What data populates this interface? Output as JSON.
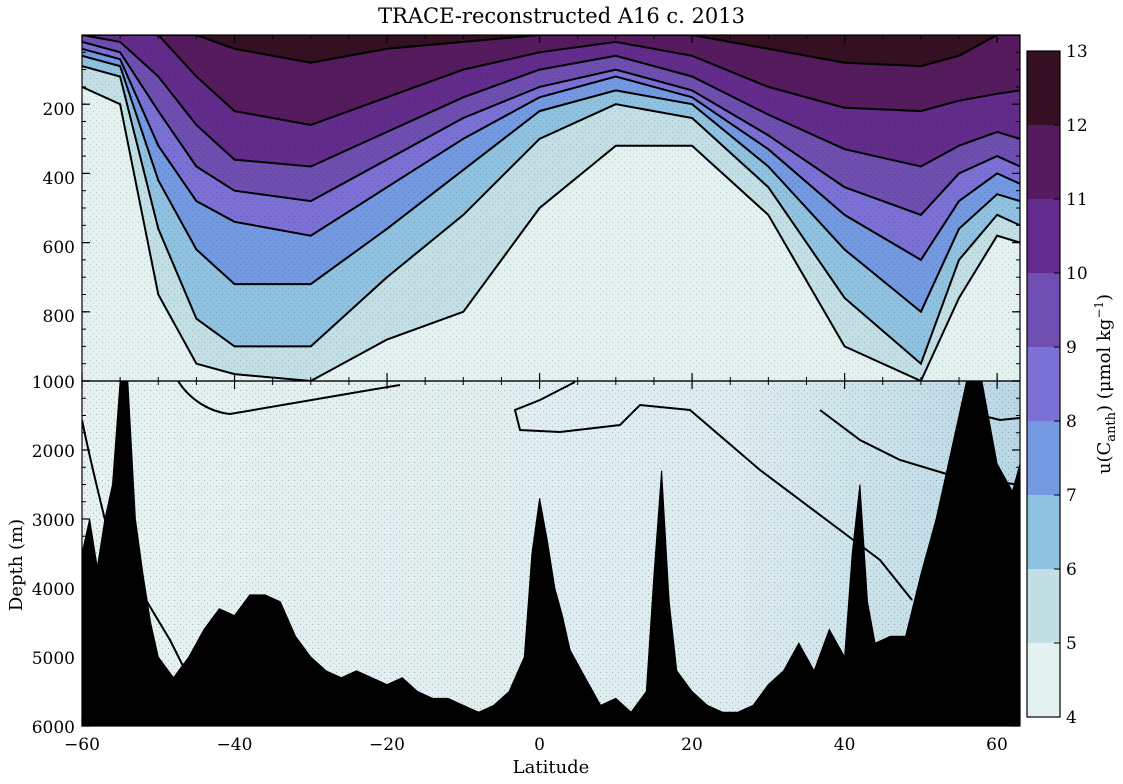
{
  "title": "TRACE-reconstructed A16 c. 2013",
  "chart_data": {
    "type": "contour",
    "title": "TRACE-reconstructed A16 c. 2013",
    "xlabel": "Latitude",
    "ylabel": "Depth (m)",
    "xlim": [
      -60,
      63
    ],
    "x_ticks": [
      -60,
      -40,
      -20,
      0,
      20,
      40,
      60
    ],
    "upper_panel": {
      "depth_range": [
        0,
        1000
      ],
      "y_ticks": [
        200,
        400,
        600,
        800,
        1000
      ]
    },
    "lower_panel": {
      "depth_range": [
        1000,
        6000
      ],
      "y_ticks": [
        1000,
        2000,
        3000,
        4000,
        5000,
        6000
      ]
    },
    "y_inverted": true,
    "colorbar": {
      "label_main": "u(C",
      "label_sub": "anth",
      "label_rest": ") (μmol kg",
      "label_sup": "−1",
      "label_close": ")",
      "levels": [
        4,
        5,
        6,
        7,
        8,
        9,
        10,
        11,
        12,
        13
      ],
      "colors": [
        "#e4f1f1",
        "#c2dfe6",
        "#8fc1e0",
        "#7299e1",
        "#7a70d6",
        "#6f4eb2",
        "#632c8c",
        "#561a5e",
        "#351023"
      ]
    },
    "contour_depths_top": {
      "x": [
        -60,
        -55,
        -50,
        -45,
        -40,
        -30,
        -20,
        -10,
        0,
        10,
        20,
        30,
        40,
        50,
        55,
        60,
        63
      ],
      "level_5": [
        150,
        200,
        750,
        950,
        980,
        1000,
        880,
        800,
        500,
        320,
        320,
        520,
        900,
        1000,
        760,
        580,
        600
      ],
      "level_6": [
        90,
        120,
        560,
        820,
        900,
        900,
        700,
        520,
        300,
        200,
        240,
        440,
        760,
        950,
        650,
        520,
        550
      ],
      "level_7": [
        60,
        90,
        420,
        620,
        720,
        720,
        560,
        390,
        220,
        160,
        200,
        380,
        620,
        800,
        560,
        460,
        480
      ],
      "level_8": [
        40,
        70,
        320,
        480,
        540,
        580,
        440,
        300,
        180,
        120,
        180,
        330,
        520,
        650,
        480,
        400,
        430
      ],
      "level_9": [
        20,
        50,
        220,
        380,
        450,
        480,
        360,
        240,
        150,
        100,
        160,
        290,
        440,
        520,
        400,
        350,
        380
      ],
      "level_10": [
        0,
        20,
        120,
        260,
        360,
        380,
        280,
        180,
        100,
        60,
        120,
        230,
        330,
        380,
        320,
        280,
        300
      ],
      "level_11": [
        0,
        0,
        0,
        120,
        220,
        260,
        180,
        100,
        50,
        20,
        60,
        150,
        210,
        220,
        190,
        170,
        160
      ],
      "level_12": [
        0,
        0,
        0,
        0,
        40,
        80,
        40,
        20,
        0,
        0,
        0,
        40,
        80,
        90,
        60,
        0,
        0
      ]
    },
    "bathymetry_depth": {
      "x": [
        -60,
        -59,
        -58,
        -57,
        -56,
        -55,
        -54,
        -53,
        -52,
        -51,
        -50,
        -48,
        -46,
        -44,
        -42,
        -40,
        -38,
        -36,
        -34,
        -32,
        -30,
        -28,
        -26,
        -24,
        -22,
        -20,
        -18,
        -16,
        -14,
        -12,
        -10,
        -8,
        -6,
        -4,
        -2,
        -1,
        0,
        1,
        2,
        3,
        4,
        6,
        8,
        10,
        12,
        14,
        15,
        16,
        17,
        18,
        20,
        22,
        24,
        26,
        28,
        30,
        32,
        34,
        36,
        38,
        40,
        41,
        42,
        43,
        44,
        46,
        48,
        50,
        52,
        54,
        56,
        58,
        60,
        62,
        63
      ],
      "depth": [
        3500,
        3000,
        3700,
        3000,
        2500,
        1000,
        1000,
        3000,
        3800,
        4500,
        5000,
        5300,
        5000,
        4600,
        4300,
        4400,
        4100,
        4100,
        4200,
        4700,
        5000,
        5200,
        5300,
        5200,
        5300,
        5400,
        5300,
        5500,
        5600,
        5600,
        5700,
        5800,
        5700,
        5500,
        5000,
        3500,
        2700,
        3300,
        4000,
        4400,
        4900,
        5300,
        5700,
        5600,
        5800,
        5500,
        3800,
        2300,
        4200,
        5200,
        5500,
        5700,
        5800,
        5800,
        5700,
        5400,
        5200,
        4800,
        5200,
        4600,
        5000,
        3500,
        2500,
        4200,
        4800,
        4700,
        4700,
        3800,
        3000,
        2000,
        1000,
        1000,
        2200,
        2600,
        2200
      ]
    }
  }
}
